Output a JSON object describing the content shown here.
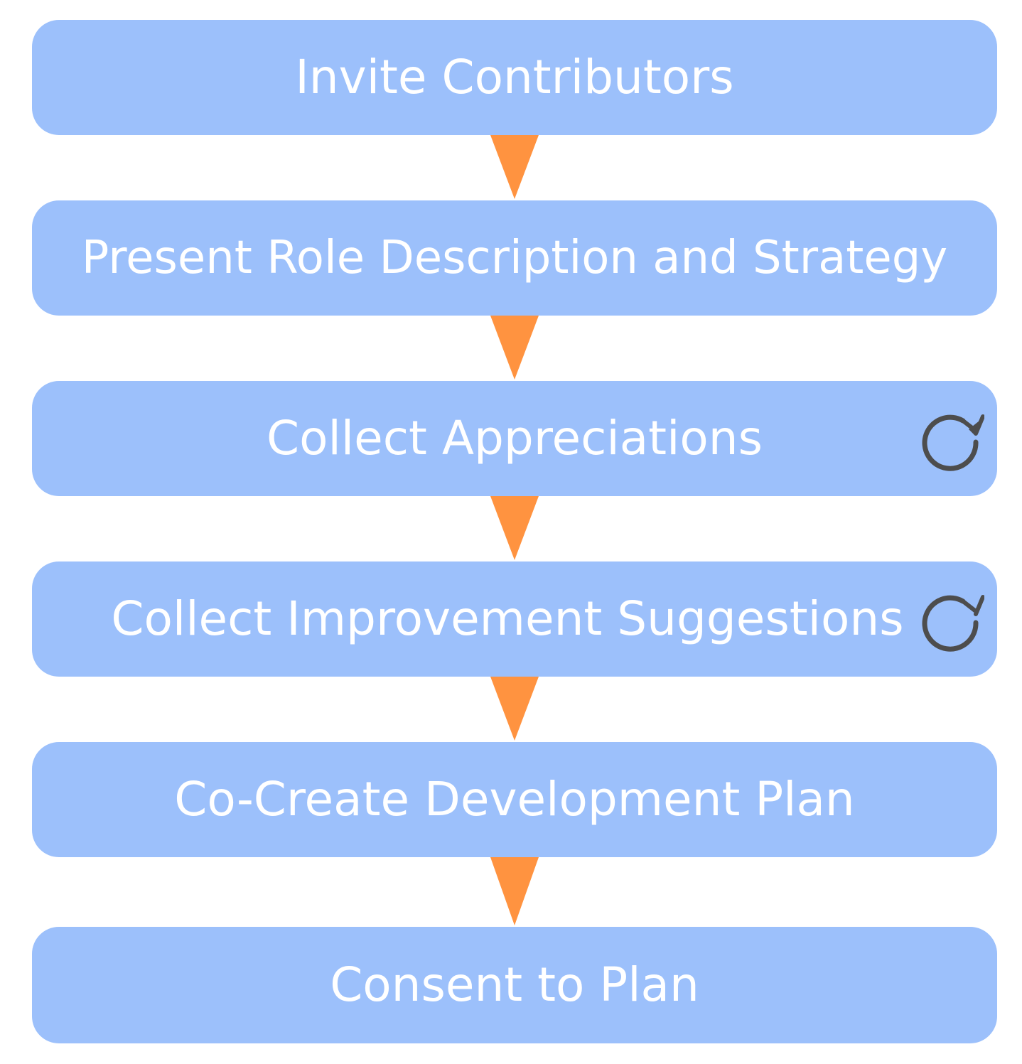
{
  "colors": {
    "step_fill": "#9cc0fb",
    "step_text": "#ffffff",
    "arrow_fill": "#ff9340",
    "repeat_icon": "#4d4d4d"
  },
  "steps": [
    {
      "label": "Invite Contributors",
      "repeat": false
    },
    {
      "label": "Present Role Description and Strategy",
      "repeat": false
    },
    {
      "label": "Collect Appreciations",
      "repeat": true,
      "icon": "repeat-icon"
    },
    {
      "label": "Collect Improvement Suggestions",
      "repeat": true,
      "icon": "repeat-icon"
    },
    {
      "label": "Co-Create Development Plan",
      "repeat": false
    },
    {
      "label": "Consent to Plan",
      "repeat": false
    }
  ]
}
